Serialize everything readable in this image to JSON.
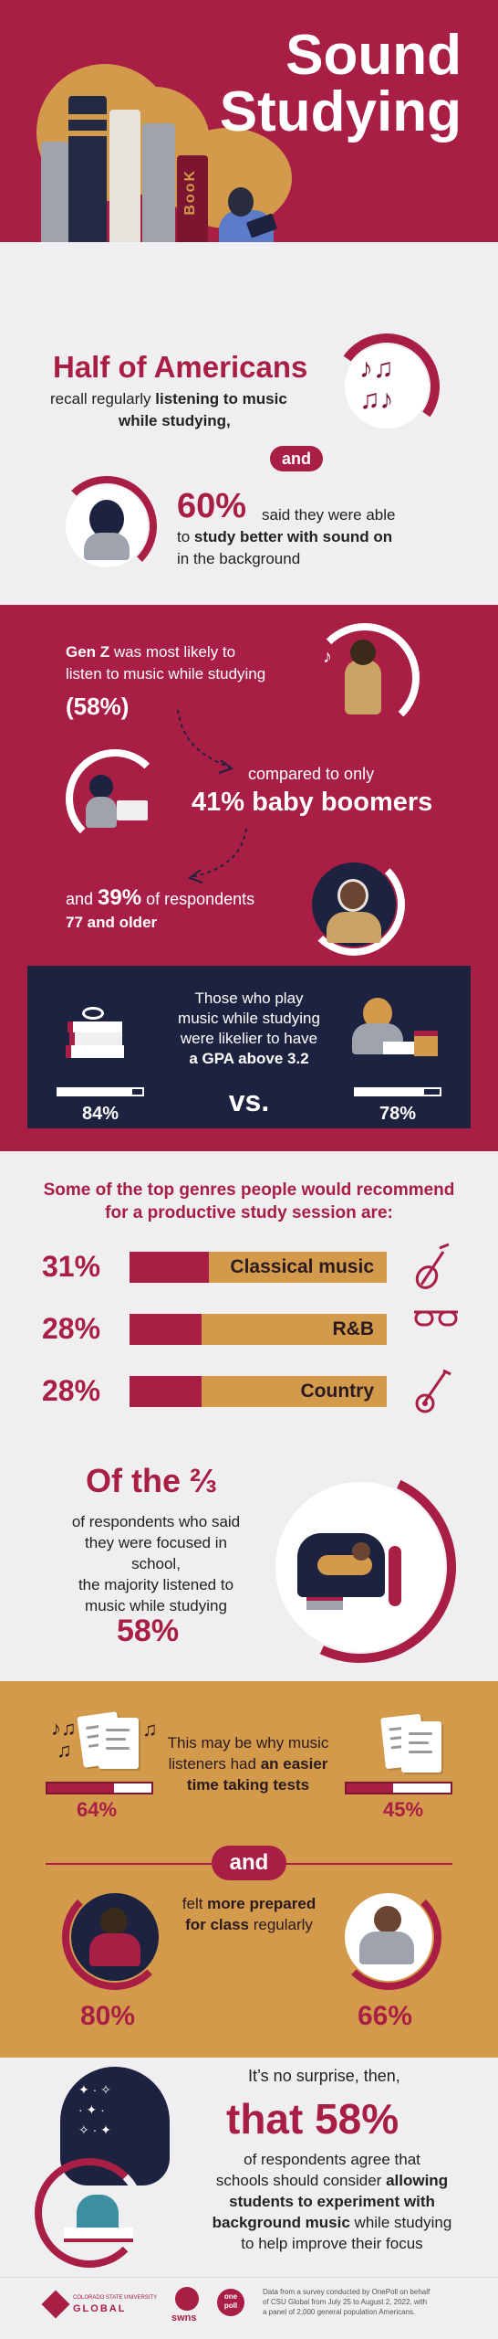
{
  "hero": {
    "title_line1": "Sound",
    "title_line2": "Studying",
    "book_spine_text": "BooK"
  },
  "intro": {
    "headline": "Half of Americans",
    "line1_prefix": "recall regularly ",
    "line1_bold": "listening to music",
    "line2_bold": "while studying,",
    "connector": "and",
    "stat": "60%",
    "stat_text1": "said they were able",
    "stat_text2_prefix": "to ",
    "stat_text2_bold": "study better with sound on",
    "stat_text3": "in the background"
  },
  "generations": {
    "genz_bold": "Gen Z",
    "genz_text1": " was most likely to",
    "genz_text2": "listen to music while studying",
    "genz_pct": "(58%)",
    "compared": "compared to only",
    "boomers": "41% baby boomers",
    "older_prefix": "and ",
    "older_pct": "39%",
    "older_suffix": " of respondents",
    "older_line2": "77 and older"
  },
  "gpa": {
    "line1": "Those who play",
    "line2": "music while studying",
    "line3_prefix": "were likelier to have",
    "line4": "a GPA above 3.2",
    "left_pct": "84%",
    "right_pct": "78%",
    "vs": "vs.",
    "left_value": 0.84,
    "right_value": 0.78
  },
  "genres": {
    "heading_line1": "Some of the top genres people would recommend",
    "heading_line2": "for a productive study session are:",
    "items": [
      {
        "pct": "31%",
        "label": "Classical music",
        "value": 0.31,
        "icon": "violin-icon"
      },
      {
        "pct": "28%",
        "label": "R&B",
        "value": 0.28,
        "icon": "sunglasses-icon"
      },
      {
        "pct": "28%",
        "label": "Country",
        "value": 0.28,
        "icon": "guitar-icon"
      }
    ]
  },
  "focus": {
    "headline": "Of the ⅔",
    "text1": "of respondents who said",
    "text2": "they were focused in school,",
    "text3": "the majority listened to",
    "text4": "music while studying",
    "pct": "58%"
  },
  "tests": {
    "line1": "This may be why music",
    "line2_prefix": "listeners had ",
    "line2_bold": "an easier",
    "line3_bold": "time taking tests",
    "left_pct": "64%",
    "right_pct": "45%",
    "left_value": 0.64,
    "right_value": 0.45,
    "connector": "and",
    "prep_prefix": "felt ",
    "prep_bold": "more prepared",
    "prep_line2_bold": "for class",
    "prep_line2_suffix": " regularly",
    "prep_left": "80%",
    "prep_right": "66%"
  },
  "conclusion": {
    "line1": "It’s no surprise, then,",
    "big": "that 58%",
    "line2": "of respondents agree that",
    "line3_prefix": "schools should consider ",
    "line3_bold": "allowing",
    "line4_bold": "students to experiment with",
    "line5_bold": "background music",
    "line5_suffix": " while studying",
    "line6": "to help improve their focus"
  },
  "footer": {
    "logo1_line1": "COLORADO STATE UNIVERSITY",
    "logo1_line2": "GLOBAL",
    "logo2": "swns",
    "logo3_line1": "one",
    "logo3_line2": "poll",
    "source1": "Data from a survey conducted by OnePoll on behalf",
    "source2": "of CSU Global from July 25 to August 2, 2022, with",
    "source3": "a panel of 2,000 general population Americans."
  },
  "colors": {
    "crimson": "#a91e44",
    "navy": "#1d2240",
    "mustard": "#d39a4c",
    "light": "#efeef0"
  }
}
